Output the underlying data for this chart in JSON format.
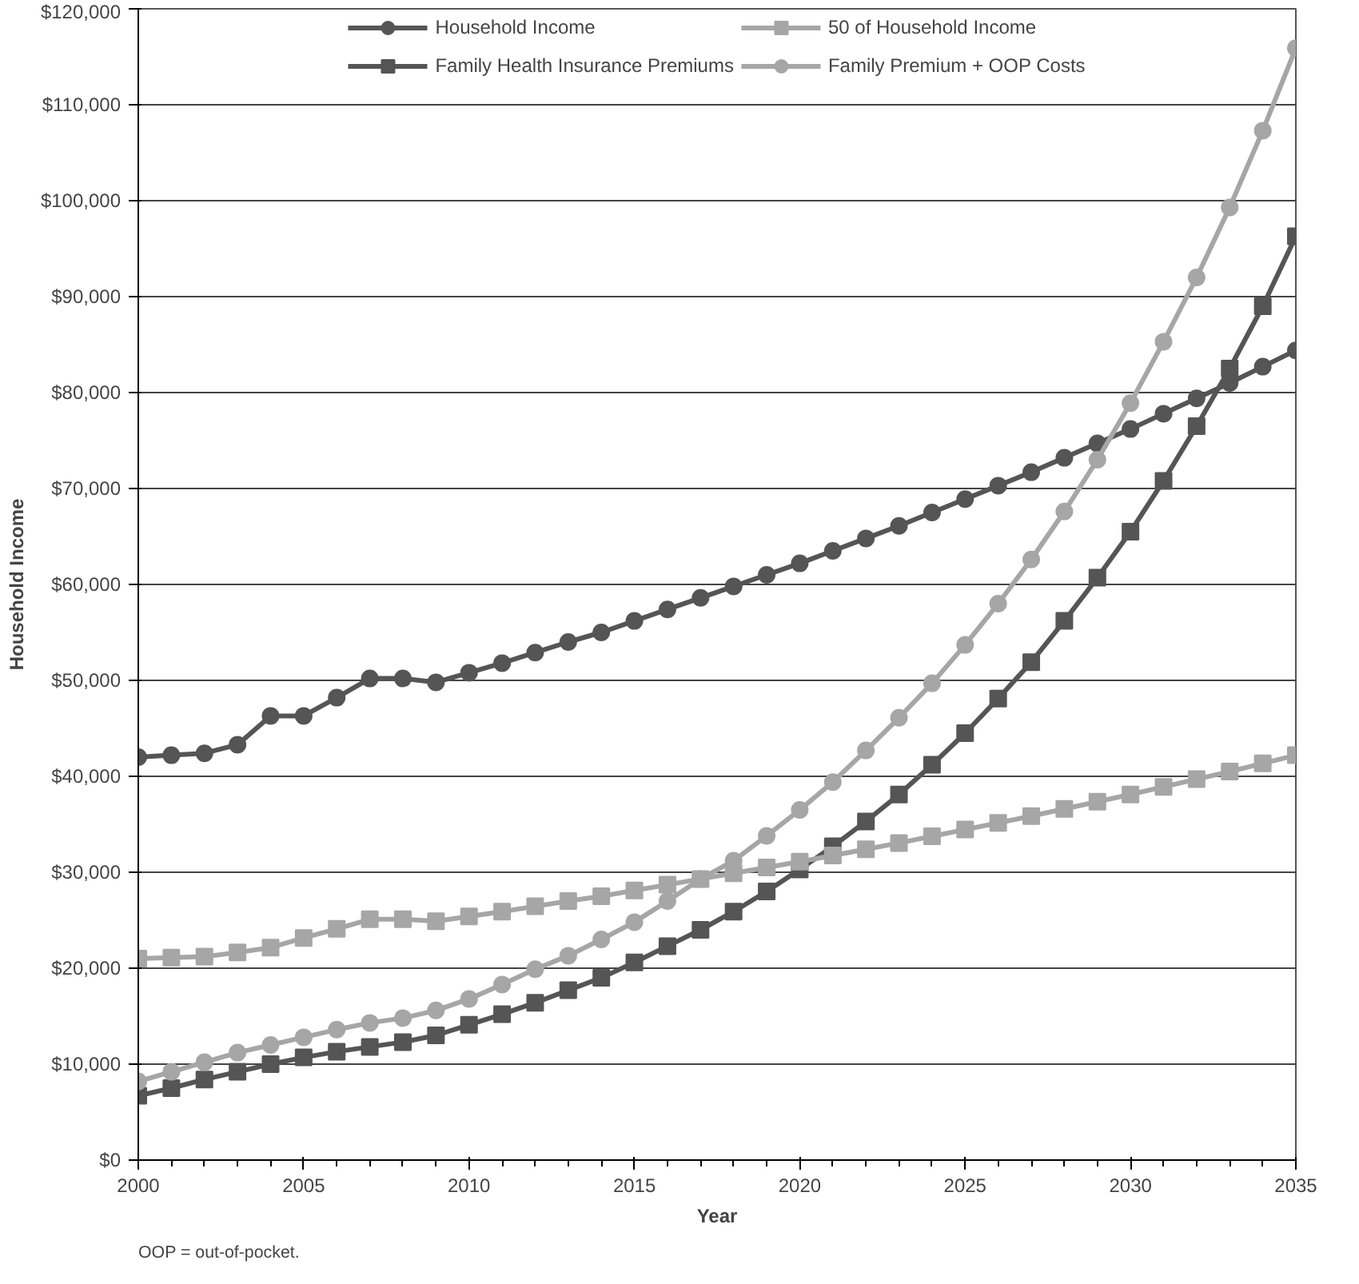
{
  "chart_data": {
    "type": "line",
    "xlabel": "Year",
    "ylabel": "Household Income",
    "x": [
      2000,
      2001,
      2002,
      2003,
      2004,
      2005,
      2006,
      2007,
      2008,
      2009,
      2010,
      2011,
      2012,
      2013,
      2014,
      2015,
      2016,
      2017,
      2018,
      2019,
      2020,
      2021,
      2022,
      2023,
      2024,
      2025,
      2026,
      2027,
      2028,
      2029,
      2030,
      2031,
      2032,
      2033,
      2034,
      2035
    ],
    "series": [
      {
        "name": "Household Income",
        "color": "#555555",
        "marker": "circle",
        "values": [
          42000,
          42200,
          42400,
          43300,
          46300,
          46300,
          48200,
          50200,
          50200,
          49800,
          50800,
          51800,
          52900,
          54000,
          55000,
          56200,
          57400,
          58600,
          59800,
          61000,
          62200,
          63500,
          64800,
          66100,
          67500,
          68900,
          70300,
          71700,
          73200,
          74700,
          76200,
          77800,
          79400,
          81000,
          82700,
          84400
        ]
      },
      {
        "name": "Family Health Insurance Premiums",
        "color": "#555555",
        "marker": "square",
        "values": [
          6700,
          7500,
          8400,
          9200,
          10000,
          10700,
          11300,
          11800,
          12300,
          13000,
          14100,
          15200,
          16400,
          17700,
          19000,
          20600,
          22300,
          24000,
          25900,
          28000,
          30300,
          32700,
          35300,
          38100,
          41200,
          44500,
          48100,
          51900,
          56200,
          60700,
          65500,
          70800,
          76500,
          82500,
          89000,
          96300
        ]
      },
      {
        "name": "50 of Household Income",
        "color": "#a6a6a6",
        "marker": "square",
        "values": [
          21000,
          21100,
          21200,
          21650,
          22150,
          23150,
          24100,
          25100,
          25100,
          24900,
          25400,
          25900,
          26450,
          27000,
          27500,
          28100,
          28700,
          29300,
          29900,
          30500,
          31100,
          31750,
          32400,
          33050,
          33750,
          34450,
          35150,
          35850,
          36600,
          37350,
          38100,
          38900,
          39700,
          40500,
          41350,
          42200
        ]
      },
      {
        "name": "Family Premium + OOP Costs",
        "color": "#a6a6a6",
        "marker": "circle",
        "values": [
          8200,
          9200,
          10200,
          11200,
          12000,
          12800,
          13600,
          14300,
          14800,
          15600,
          16800,
          18300,
          19900,
          21300,
          23000,
          24800,
          27000,
          29300,
          31200,
          33800,
          36500,
          39400,
          42700,
          46100,
          49700,
          53700,
          58000,
          62600,
          67600,
          73000,
          78900,
          85300,
          92000,
          99300,
          107300,
          115900
        ]
      }
    ],
    "xlim": [
      2000,
      2035
    ],
    "xticks": [
      2000,
      2005,
      2010,
      2015,
      2020,
      2025,
      2030,
      2035
    ],
    "ylim": [
      0,
      120000
    ],
    "yticks": [
      {
        "value": 0,
        "label": "$0"
      },
      {
        "value": 10000,
        "label": "$10,000"
      },
      {
        "value": 20000,
        "label": "$20,000"
      },
      {
        "value": 30000,
        "label": "$30,000"
      },
      {
        "value": 40000,
        "label": "$40,000"
      },
      {
        "value": 50000,
        "label": "$50,000"
      },
      {
        "value": 60000,
        "label": "$60,000"
      },
      {
        "value": 70000,
        "label": "$70,000"
      },
      {
        "value": 80000,
        "label": "$80,000"
      },
      {
        "value": 90000,
        "label": "$90,000"
      },
      {
        "value": 100000,
        "label": "$100,000"
      },
      {
        "value": 110000,
        "label": "$110,000"
      },
      {
        "value": 120000,
        "label": "$120,000"
      }
    ],
    "grid": "y",
    "legend": "top",
    "line_style": "solid",
    "annotations": [
      "OOP = out-of-pocket."
    ]
  }
}
